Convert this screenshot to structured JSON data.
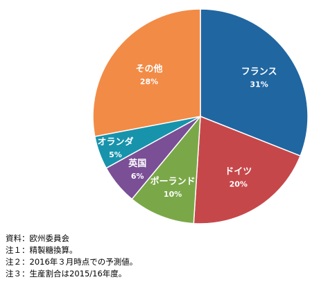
{
  "chart_data": {
    "type": "pie",
    "slices": [
      {
        "label": "フランス",
        "value": 31,
        "value_label": "31%",
        "color": "#2066a1"
      },
      {
        "label": "ドイツ",
        "value": 20,
        "value_label": "20%",
        "color": "#c6474a"
      },
      {
        "label": "ポーランド",
        "value": 10,
        "value_label": "10%",
        "color": "#7aa848"
      },
      {
        "label": "英国",
        "value": 6,
        "value_label": "6%",
        "color": "#7a4f96"
      },
      {
        "label": "オランダ",
        "value": 5,
        "value_label": "5%",
        "color": "#1893ac"
      },
      {
        "label": "その他",
        "value": 28,
        "value_label": "28%",
        "color": "#f28b46"
      }
    ],
    "start_direction": "top",
    "direction": "clockwise"
  },
  "notes": [
    "資料：欧州委員会",
    "注１：精製糖換算。",
    "注２：2016年３月時点での予測値。",
    "注３：生産割合は2015/16年度。"
  ]
}
